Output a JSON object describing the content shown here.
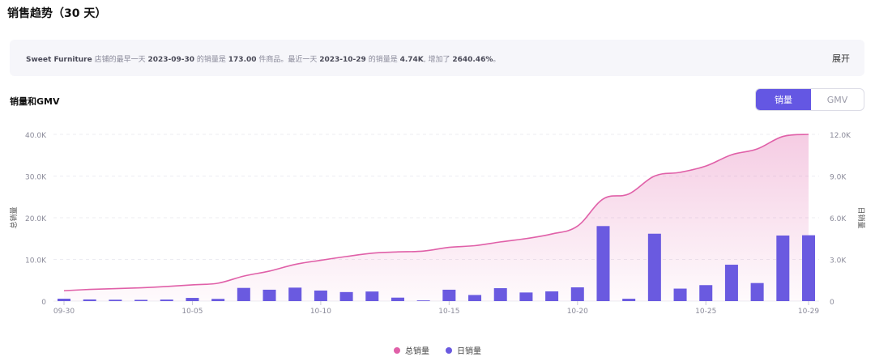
{
  "header": {
    "title": "销售趋势（30 天）"
  },
  "summary": {
    "shop": "Sweet Furniture",
    "t1": " 店铺的最早一天 ",
    "d1": "2023-09-30",
    "t2": " 的销量是 ",
    "v1": "173.00",
    "t3": " 件商品。最近一天 ",
    "d2": "2023-10-29",
    "t4": " 的销量是 ",
    "v2": "4.74K",
    "t5": ", 增加了 ",
    "pct": "2640.46%",
    "t6": "。",
    "expand_label": "展开"
  },
  "chart_header": {
    "title": "销量和GMV"
  },
  "toggle": {
    "options": [
      "销量",
      "GMV"
    ],
    "active": "销量"
  },
  "colors": {
    "total_line": "#e060a8",
    "daily_bar": "#6a5ae0",
    "accent": "#6457e3"
  },
  "chart_data": {
    "type": "bar",
    "x": [
      "09-30",
      "10-01",
      "10-02",
      "10-03",
      "10-04",
      "10-05",
      "10-06",
      "10-07",
      "10-08",
      "10-09",
      "10-10",
      "10-11",
      "10-12",
      "10-13",
      "10-14",
      "10-15",
      "10-16",
      "10-17",
      "10-18",
      "10-19",
      "10-20",
      "10-21",
      "10-22",
      "10-23",
      "10-24",
      "10-25",
      "10-26",
      "10-27",
      "10-28",
      "10-29"
    ],
    "x_ticks": [
      "09-30",
      "10-05",
      "10-10",
      "10-15",
      "10-20",
      "10-25",
      "10-29"
    ],
    "series": [
      {
        "name": "总销量",
        "type": "area-line",
        "axis": "left",
        "values": [
          2500,
          2800,
          3000,
          3200,
          3500,
          3900,
          4300,
          6000,
          7200,
          8800,
          9800,
          10700,
          11500,
          11800,
          12000,
          12900,
          13300,
          14200,
          15000,
          16100,
          18000,
          24500,
          25700,
          30000,
          30900,
          32400,
          35100,
          36500,
          39500,
          40000
        ]
      },
      {
        "name": "日销量",
        "type": "bar",
        "axis": "right",
        "values": [
          173,
          120,
          100,
          90,
          110,
          230,
          160,
          950,
          820,
          970,
          760,
          650,
          690,
          250,
          50,
          820,
          440,
          930,
          620,
          700,
          990,
          5400,
          170,
          4850,
          900,
          1150,
          2620,
          1300,
          4720,
          4740
        ]
      }
    ],
    "y_left": {
      "label": "总销量",
      "ticks": [
        "0",
        "10.0K",
        "20.0K",
        "30.0K",
        "40.0K"
      ],
      "range": [
        0,
        40000
      ]
    },
    "y_right": {
      "label": "日销量",
      "ticks": [
        "0",
        "3.0K",
        "6.0K",
        "9.0K",
        "12.0K"
      ],
      "range": [
        0,
        12000
      ]
    },
    "grid": true,
    "legend_position": "bottom"
  }
}
